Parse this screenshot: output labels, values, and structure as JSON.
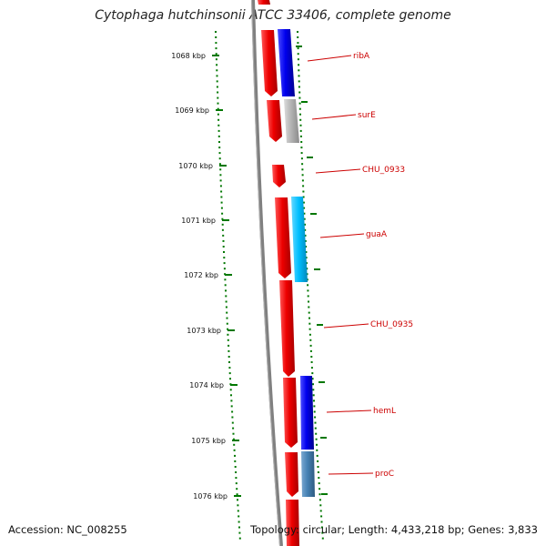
{
  "title": "Cytophaga hutchinsonii ATCC 33406, complete genome",
  "accession_label": "Accession: NC_008255",
  "topology_label": "Topology: circular; Length: 4,433,218 bp; Genes: 3,833",
  "scale_labels": [
    "1068 kbp",
    "1069 kbp",
    "1070 kbp",
    "1071 kbp",
    "1072 kbp",
    "1073 kbp",
    "1074 kbp",
    "1075 kbp",
    "1076 kbp"
  ],
  "genes": [
    {
      "name": "ribA",
      "color": "#0000ee"
    },
    {
      "name": "surE",
      "color": "#b4b4b4"
    },
    {
      "name": "CHU_0933",
      "color": "#ee0000"
    },
    {
      "name": "guaA",
      "color": "#00bfff"
    },
    {
      "name": "CHU_0935",
      "color": "#ee0000"
    },
    {
      "name": "hemL",
      "color": "#0000ee"
    },
    {
      "name": "proC",
      "color": "#4682b4"
    }
  ],
  "colors": {
    "cds_forward": "#ee0000",
    "backbone": "#808080",
    "tick": "#007700",
    "label": "#cc0000"
  }
}
